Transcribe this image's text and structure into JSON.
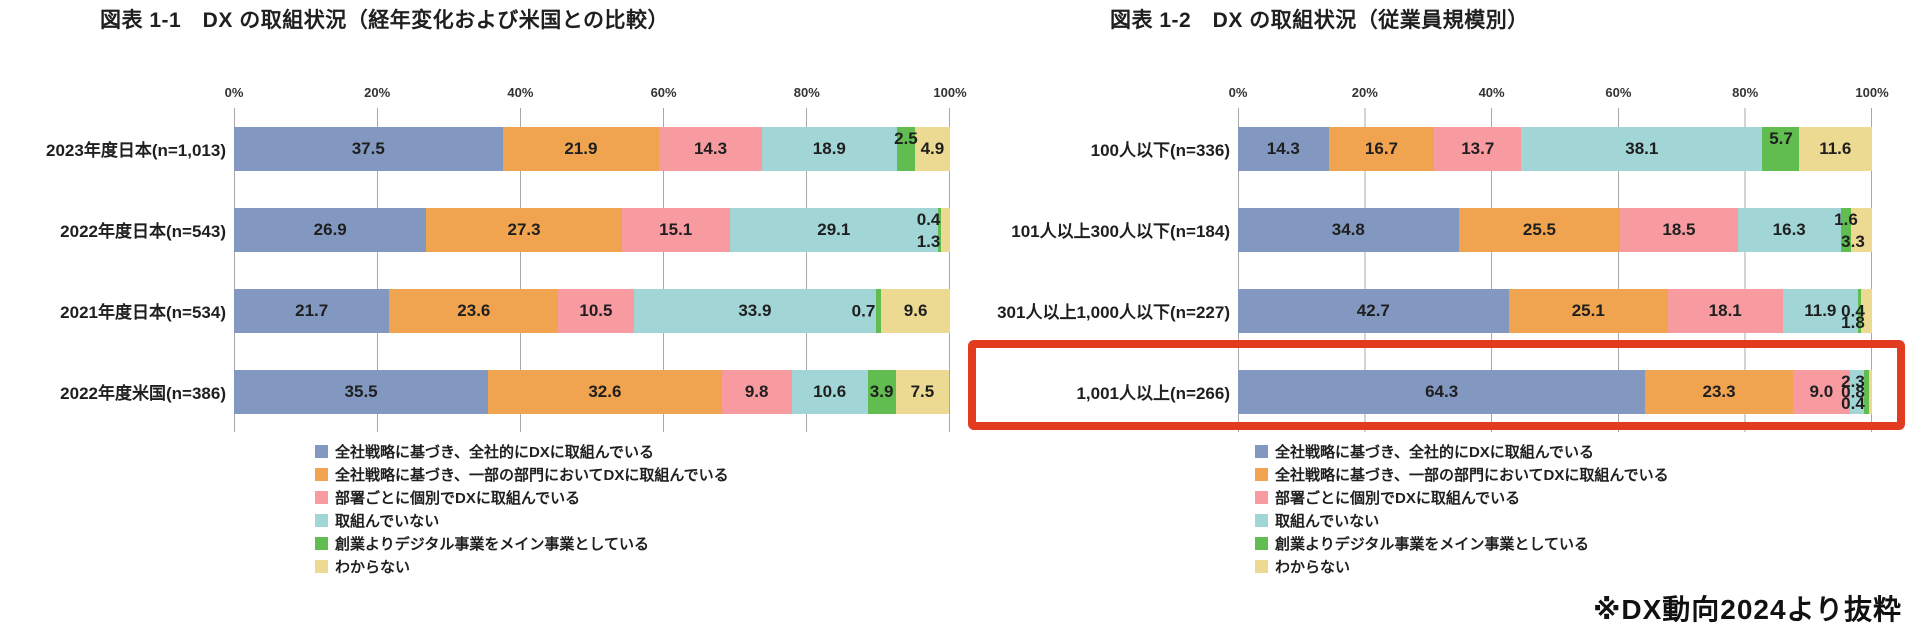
{
  "page": {
    "footnote": "※DX動向2024より抜粋",
    "background": "#ffffff"
  },
  "axis": {
    "ticks": [
      "0%",
      "20%",
      "40%",
      "60%",
      "80%",
      "100%"
    ]
  },
  "legend": {
    "items": [
      "全社戦略に基づき、全社的にDXに取組んでいる",
      "全社戦略に基づき、一部の部門においてDXに取組んでいる",
      "部署ごとに個別でDXに取組んでいる",
      "取組んでいない",
      "創業よりデジタル事業をメイン事業としている",
      "わからない"
    ]
  },
  "colors": {
    "series": [
      "#8298c1",
      "#f0a44f",
      "#f79ba1",
      "#a2d5d6",
      "#62bd51",
      "#edda92"
    ],
    "grid": "#a8a8a8",
    "text": "#1f1f1f",
    "highlight_box": "#e23b1f"
  },
  "chart_data": [
    {
      "id": "fig-1-1",
      "type": "bar",
      "stacked": true,
      "orientation": "horizontal",
      "title": "図表 1-1　DX の取組状況（経年変化および米国との比較）",
      "unit": "%",
      "xlim": [
        0,
        100
      ],
      "grid": true,
      "legend_position": "bottom",
      "categories": [
        "2023年度日本(n=1,013)",
        "2022年度日本(n=543)",
        "2021年度日本(n=534)",
        "2022年度米国(n=386)"
      ],
      "series": [
        {
          "name": "全社戦略に基づき、全社的にDXに取組んでいる",
          "values": [
            37.5,
            26.9,
            21.7,
            35.5
          ]
        },
        {
          "name": "全社戦略に基づき、一部の部門においてDXに取組んでいる",
          "values": [
            21.9,
            27.3,
            23.6,
            32.6
          ]
        },
        {
          "name": "部署ごとに個別でDXに取組んでいる",
          "values": [
            14.3,
            15.1,
            10.5,
            9.8
          ]
        },
        {
          "name": "取組んでいない",
          "values": [
            18.9,
            29.1,
            33.9,
            10.6
          ]
        },
        {
          "name": "創業よりデジタル事業をメイン事業としている",
          "values": [
            2.5,
            0.4,
            0.7,
            3.9
          ]
        },
        {
          "name": "わからない",
          "values": [
            4.9,
            1.3,
            9.6,
            7.5
          ]
        }
      ],
      "value_label_positions": [
        [
          "in",
          "in",
          "in",
          "in",
          "up",
          "in"
        ],
        [
          "in",
          "in",
          "in",
          "in",
          "up",
          "down"
        ],
        [
          "in",
          "in",
          "in",
          "in",
          "left",
          "in"
        ],
        [
          "in",
          "in",
          "in",
          "in",
          "in",
          "in"
        ]
      ]
    },
    {
      "id": "fig-1-2",
      "type": "bar",
      "stacked": true,
      "orientation": "horizontal",
      "title": "図表 1-2　DX の取組状況（従業員規模別）",
      "unit": "%",
      "xlim": [
        0,
        100
      ],
      "grid": true,
      "legend_position": "bottom",
      "highlight_row": 3,
      "categories": [
        "100人以下(n=336)",
        "101人以上300人以下(n=184)",
        "301人以上1,000人以下(n=227)",
        "1,001人以上(n=266)"
      ],
      "series": [
        {
          "name": "全社戦略に基づき、全社的にDXに取組んでいる",
          "values": [
            14.3,
            34.8,
            42.7,
            64.3
          ]
        },
        {
          "name": "全社戦略に基づき、一部の部門においてDXに取組んでいる",
          "values": [
            16.7,
            25.5,
            25.1,
            23.3
          ]
        },
        {
          "name": "部署ごとに個別でDXに取組んでいる",
          "values": [
            13.7,
            18.5,
            18.1,
            9.0
          ]
        },
        {
          "name": "取組んでいない",
          "values": [
            38.1,
            16.3,
            11.9,
            2.3
          ]
        },
        {
          "name": "創業よりデジタル事業をメイン事業としている",
          "values": [
            5.7,
            1.6,
            0.4,
            0.8
          ]
        },
        {
          "name": "わからない",
          "values": [
            11.6,
            3.3,
            1.8,
            0.4
          ]
        }
      ],
      "value_label_positions": [
        [
          "in",
          "in",
          "in",
          "in",
          "up",
          "in"
        ],
        [
          "in",
          "in",
          "in",
          "in",
          "up",
          "down"
        ],
        [
          "in",
          "in",
          "in",
          "in",
          "mid",
          "down"
        ],
        [
          "in",
          "in",
          "in",
          "up",
          "mid",
          "down"
        ]
      ]
    }
  ]
}
